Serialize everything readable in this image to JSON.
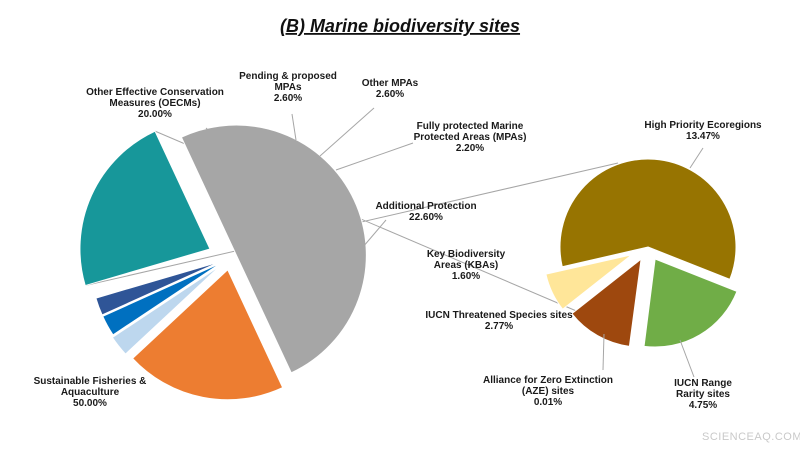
{
  "chart_data": {
    "type": "pie",
    "title": "(B) Marine biodiversity sites",
    "main_pie": {
      "slices": [
        {
          "label": [
            "Sustainable Fisheries &",
            "Aquaculture"
          ],
          "value_label": "50.00%",
          "value": 50.0,
          "color": "#a6a6a6"
        },
        {
          "label": [
            "Other Effective Conservation",
            "Measures (OECMs)"
          ],
          "value_label": "20.00%",
          "value": 20.0,
          "color": "#ed7d31"
        },
        {
          "label": [
            "Pending & proposed",
            "MPAs"
          ],
          "value_label": "2.60%",
          "value": 2.6,
          "color": "#bdd7ee"
        },
        {
          "label": [
            "Other MPAs"
          ],
          "value_label": "2.60%",
          "value": 2.6,
          "color": "#0070c0"
        },
        {
          "label": [
            "Fully protected Marine",
            "Protected Areas (MPAs)"
          ],
          "value_label": "2.20%",
          "value": 2.2,
          "color": "#2f5597"
        },
        {
          "label": [
            "Additional Protection"
          ],
          "value_label": "22.60%",
          "value": 22.6,
          "color": "#17979a"
        }
      ]
    },
    "secondary_pie": {
      "breakdown_of": "Additional Protection",
      "slices": [
        {
          "label": [
            "High Priority Ecoregions"
          ],
          "value_label": "13.47%",
          "value": 13.47,
          "color": "#977401"
        },
        {
          "label": [
            "IUCN Range",
            "Rarity sites"
          ],
          "value_label": "4.75%",
          "value": 4.75,
          "color": "#70ad47"
        },
        {
          "label": [
            "Alliance for Zero Extinction",
            "(AZE) sites"
          ],
          "value_label": "0.01%",
          "value": 0.01,
          "color": "#7f7f7f"
        },
        {
          "label": [
            "IUCN Threatened Species sites"
          ],
          "value_label": "2.77%",
          "value": 2.77,
          "color": "#9e480e"
        },
        {
          "label": [
            "Key Biodiversity",
            "Areas (KBAs)"
          ],
          "value_label": "1.60%",
          "value": 1.6,
          "color": "#ffe699"
        }
      ]
    }
  },
  "watermark": "SCIENCEAQ.COM"
}
